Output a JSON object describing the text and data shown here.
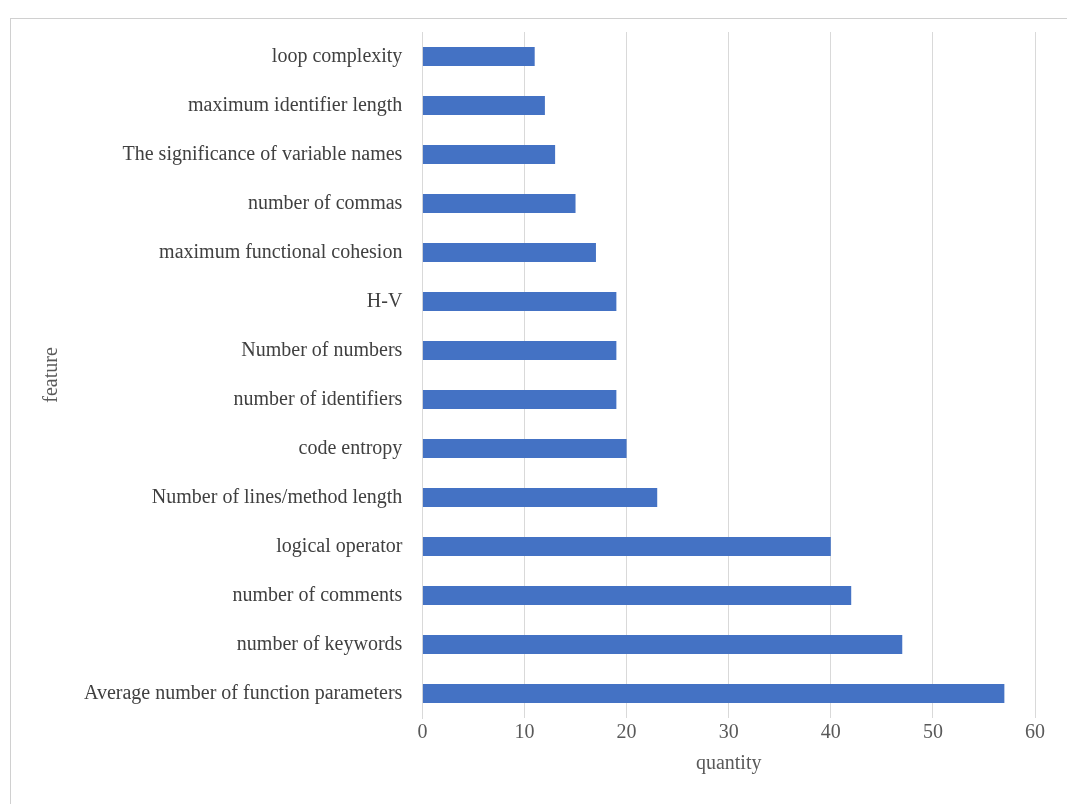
{
  "chart_data": {
    "type": "bar",
    "orientation": "horizontal",
    "xlabel": "quantity",
    "ylabel": "feature",
    "categories": [
      "loop complexity",
      "maximum identifier length",
      "The significance of variable names",
      "number of commas",
      "maximum functional cohesion",
      "H-V",
      "Number of numbers",
      "number of identifiers",
      "code entropy",
      "Number of lines/method length",
      "logical operator",
      "number of comments",
      "number of keywords",
      "Average number of function parameters"
    ],
    "values": [
      11,
      12,
      13,
      15,
      17,
      19,
      19,
      19,
      20,
      23,
      40,
      42,
      47,
      57
    ],
    "color": "#4472c4",
    "xlim": [
      0,
      60
    ],
    "xticks": [
      0,
      10,
      20,
      30,
      40,
      50,
      60
    ],
    "grid": "x",
    "legend": false
  }
}
